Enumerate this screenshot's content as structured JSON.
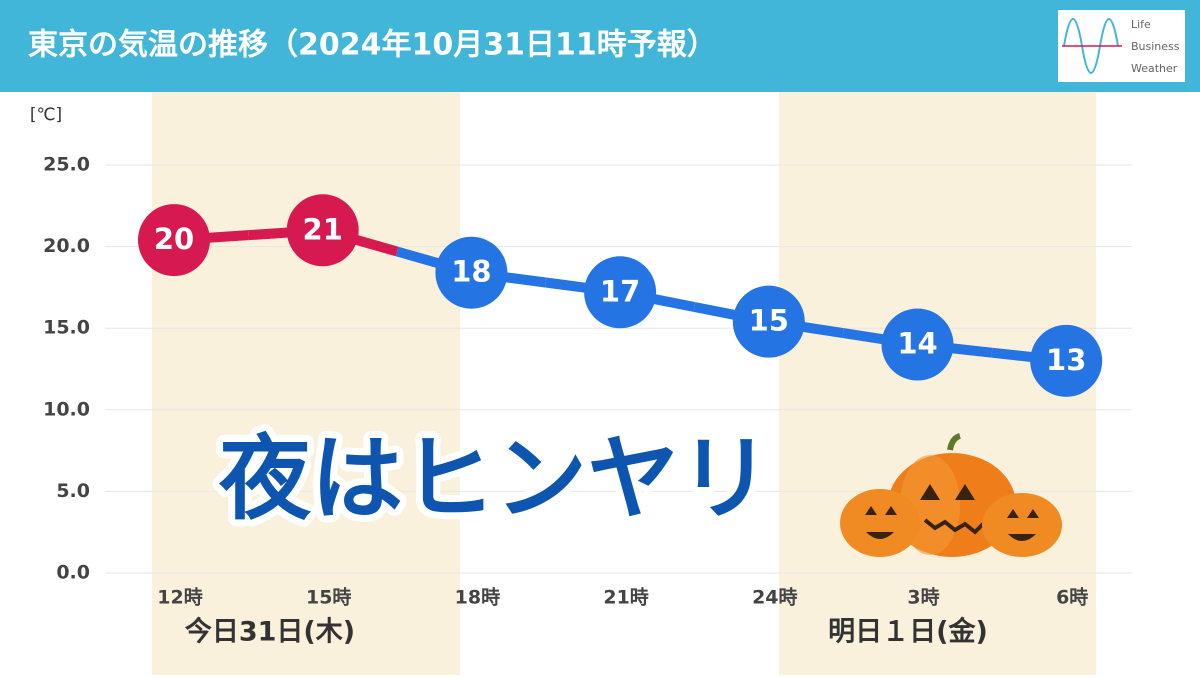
{
  "chart_data": {
    "type": "line",
    "title": "東京の気温の推移（2024年10月31日11時予報）",
    "logo": [
      "Life",
      "Business",
      "Weather"
    ],
    "y_unit": "[℃]",
    "categories": [
      "12時",
      "15時",
      "18時",
      "21時",
      "24時",
      "3時",
      "6時"
    ],
    "values": [
      20.4,
      21.0,
      18.4,
      17.2,
      15.4,
      14.0,
      13.0
    ],
    "value_labels": [
      "20",
      "21",
      "18",
      "17",
      "15",
      "14",
      "13"
    ],
    "point_colors": [
      "#d61a4f",
      "#d61a4f",
      "#2574e4",
      "#2574e4",
      "#2574e4",
      "#2574e4",
      "#2574e4"
    ],
    "ylim": [
      0,
      25
    ],
    "yticks": [
      {
        "value": 0,
        "label": "0.0"
      },
      {
        "value": 5,
        "label": "5.0"
      },
      {
        "value": 10,
        "label": "10.0"
      },
      {
        "value": 15,
        "label": "15.0"
      },
      {
        "value": 20,
        "label": "20.0"
      },
      {
        "value": 25,
        "label": "25.0"
      }
    ],
    "grid": true,
    "day_labels": [
      "今日31日(木)",
      "明日１日(金)"
    ],
    "annotation": "夜はヒンヤリ"
  }
}
